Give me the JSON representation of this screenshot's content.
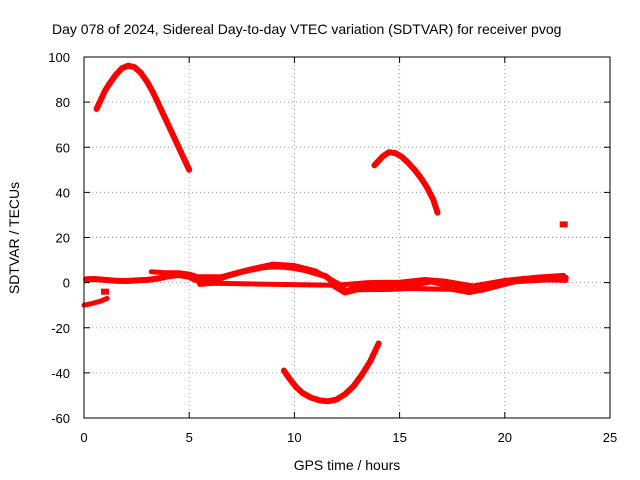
{
  "chart_data": {
    "type": "scatter",
    "title": "Day 078 of 2024, Sidereal Day-to-day VTEC variation (SDTVAR) for receiver pvog",
    "xlabel": "GPS time / hours",
    "ylabel": "SDTVAR / TECUs",
    "xlim": [
      0,
      25
    ],
    "ylim": [
      -60,
      100
    ],
    "xticks": [
      0,
      5,
      10,
      15,
      20,
      25
    ],
    "yticks": [
      -60,
      -40,
      -20,
      0,
      20,
      40,
      60,
      80,
      100
    ],
    "xtick_labels": [
      "0",
      "5",
      "10",
      "15",
      "20",
      "25"
    ],
    "ytick_labels": [
      "-60",
      "-40",
      "-20",
      "0",
      "20",
      "40",
      "60",
      "80",
      "100"
    ],
    "grid": true,
    "color": "#ff0000",
    "series": [
      {
        "name": "baseline",
        "width": 6,
        "points": [
          [
            0.1,
            1.5
          ],
          [
            0.5,
            1.6
          ],
          [
            1.0,
            1.2
          ],
          [
            1.5,
            0.8
          ],
          [
            2.0,
            0.7
          ],
          [
            2.5,
            1.0
          ],
          [
            3.0,
            1.2
          ],
          [
            3.5,
            1.8
          ],
          [
            4.0,
            2.8
          ],
          [
            4.5,
            3.4
          ],
          [
            5.0,
            2.6
          ],
          [
            5.3,
            1.2
          ],
          [
            5.6,
            0.4
          ],
          [
            6.0,
            0.8
          ],
          [
            6.5,
            2.0
          ],
          [
            7.0,
            3.5
          ],
          [
            7.5,
            4.8
          ],
          [
            8.0,
            5.8
          ],
          [
            8.5,
            6.8
          ],
          [
            9.0,
            7.2
          ],
          [
            9.5,
            7.0
          ],
          [
            10.0,
            6.5
          ],
          [
            10.5,
            5.6
          ],
          [
            11.0,
            4.2
          ],
          [
            11.5,
            2.8
          ],
          [
            11.8,
            0.5
          ],
          [
            12.2,
            -2.5
          ],
          [
            12.5,
            -3.8
          ],
          [
            12.8,
            -2.6
          ],
          [
            13.0,
            -2.2
          ],
          [
            13.5,
            -1.2
          ],
          [
            14.0,
            -0.8
          ],
          [
            14.5,
            -1.5
          ],
          [
            15.0,
            -1.8
          ],
          [
            15.5,
            -1.2
          ],
          [
            16.0,
            -0.3
          ],
          [
            16.5,
            0.6
          ],
          [
            17.0,
            -0.5
          ],
          [
            17.5,
            -2.2
          ],
          [
            18.0,
            -3.0
          ],
          [
            18.5,
            -2.8
          ],
          [
            19.0,
            -1.8
          ],
          [
            19.5,
            -0.9
          ],
          [
            20.0,
            0.2
          ],
          [
            20.5,
            1.2
          ],
          [
            21.0,
            1.6
          ],
          [
            21.5,
            1.8
          ],
          [
            22.0,
            2.0
          ],
          [
            22.5,
            2.1
          ],
          [
            22.9,
            2.2
          ]
        ]
      },
      {
        "name": "spread-upper",
        "width": 5,
        "points": [
          [
            3.2,
            4.8
          ],
          [
            3.8,
            4.4
          ],
          [
            4.5,
            4.4
          ],
          [
            5.0,
            3.8
          ],
          [
            5.4,
            2.6
          ],
          [
            6.5,
            2.6
          ],
          [
            8.0,
            6.2
          ],
          [
            9.0,
            8.2
          ],
          [
            10.0,
            7.6
          ],
          [
            11.0,
            5.2
          ],
          [
            12.2,
            -1.0
          ],
          [
            13.5,
            0.0
          ],
          [
            15.0,
            0.2
          ],
          [
            16.2,
            1.4
          ],
          [
            17.2,
            0.6
          ],
          [
            18.5,
            -1.5
          ],
          [
            20.0,
            1.0
          ],
          [
            21.5,
            2.4
          ],
          [
            22.8,
            3.2
          ]
        ]
      },
      {
        "name": "spread-lower",
        "width": 5,
        "points": [
          [
            5.5,
            -0.8
          ],
          [
            6.2,
            -0.3
          ],
          [
            11.8,
            -1.2
          ],
          [
            12.4,
            -4.6
          ],
          [
            13.0,
            -3.2
          ],
          [
            14.6,
            -3.0
          ],
          [
            15.5,
            -2.6
          ],
          [
            17.5,
            -3.0
          ],
          [
            18.3,
            -4.4
          ],
          [
            19.0,
            -3.2
          ],
          [
            20.5,
            0.4
          ],
          [
            22.0,
            1.2
          ],
          [
            22.9,
            1.0
          ]
        ]
      },
      {
        "name": "early-negative",
        "width": 5,
        "points": [
          [
            0.0,
            -10.0
          ],
          [
            0.4,
            -9.2
          ],
          [
            0.8,
            -8.2
          ],
          [
            1.1,
            -7.0
          ]
        ]
      },
      {
        "name": "hump-1",
        "width": 6,
        "points": [
          [
            0.6,
            77
          ],
          [
            0.8,
            81
          ],
          [
            1.0,
            85
          ],
          [
            1.2,
            88
          ],
          [
            1.5,
            92
          ],
          [
            1.8,
            95
          ],
          [
            2.1,
            96.2
          ],
          [
            2.4,
            95.5
          ],
          [
            2.7,
            93
          ],
          [
            3.0,
            89
          ],
          [
            3.3,
            84
          ],
          [
            3.6,
            78
          ],
          [
            3.9,
            72
          ],
          [
            4.2,
            66
          ],
          [
            4.5,
            60
          ],
          [
            4.8,
            54
          ],
          [
            5.0,
            50
          ]
        ]
      },
      {
        "name": "hump-2",
        "width": 6,
        "points": [
          [
            13.8,
            52
          ],
          [
            14.0,
            54
          ],
          [
            14.2,
            56
          ],
          [
            14.5,
            57.8
          ],
          [
            14.8,
            57.4
          ],
          [
            15.1,
            55.8
          ],
          [
            15.4,
            53.2
          ],
          [
            15.7,
            50.2
          ],
          [
            16.0,
            46.6
          ],
          [
            16.3,
            42.2
          ],
          [
            16.6,
            36.8
          ],
          [
            16.8,
            31
          ]
        ]
      },
      {
        "name": "trough",
        "width": 6,
        "points": [
          [
            9.5,
            -39
          ],
          [
            9.8,
            -43
          ],
          [
            10.1,
            -46.5
          ],
          [
            10.4,
            -49
          ],
          [
            10.8,
            -51
          ],
          [
            11.2,
            -52.2
          ],
          [
            11.6,
            -52.6
          ],
          [
            12.0,
            -51.8
          ],
          [
            12.4,
            -49.5
          ],
          [
            12.8,
            -46
          ],
          [
            13.2,
            -41
          ],
          [
            13.6,
            -35
          ],
          [
            14.0,
            -27
          ]
        ]
      }
    ],
    "points": [
      [
        1.0,
        -4.0
      ],
      [
        22.8,
        25.8
      ]
    ]
  }
}
